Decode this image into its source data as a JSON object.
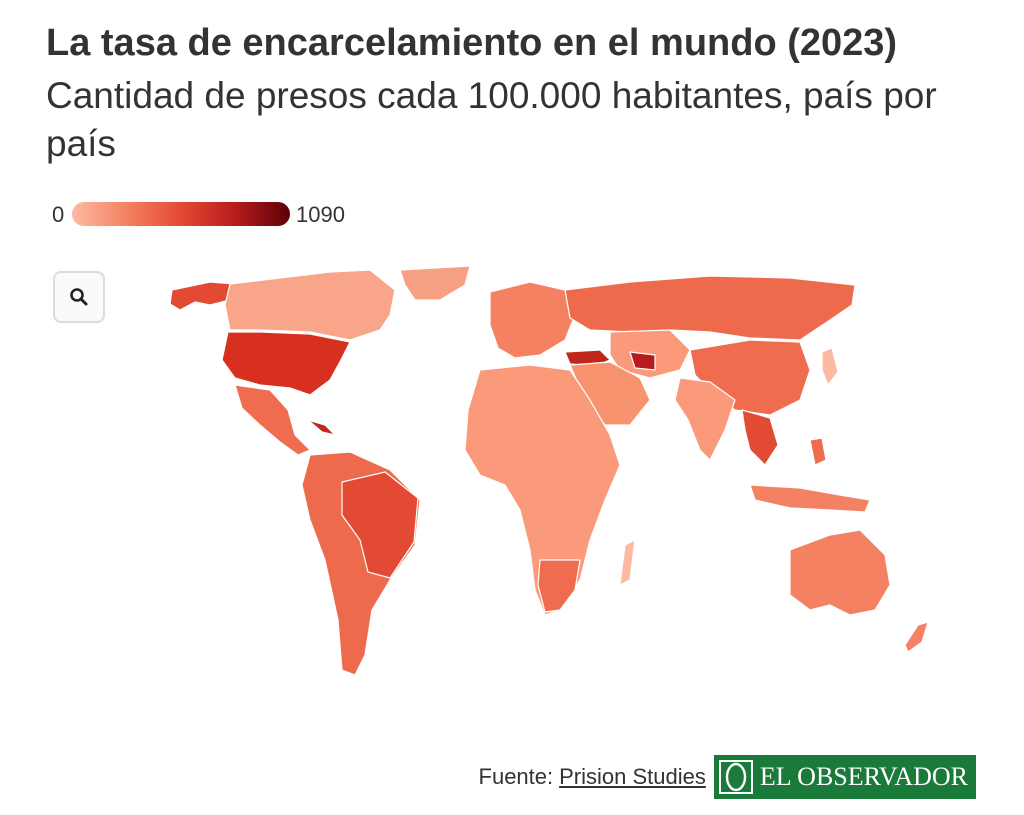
{
  "header": {
    "title": "La tasa de encarcelamiento en el mundo (2023)",
    "subtitle": "Cantidad de presos cada 100.000 habitantes, país por país"
  },
  "legend": {
    "min": "0",
    "max": "1090",
    "colors": [
      "#fcbba1",
      "#f58163",
      "#e34a33",
      "#b71c1c",
      "#5c0006"
    ]
  },
  "map": {
    "type": "choropleth",
    "no_data_color": "#e6e6e6",
    "zoom_button_icon": "search-icon"
  },
  "footer": {
    "source_prefix": "Fuente:",
    "source_link": "Prision Studies",
    "logo_text": "EL OBSERVADOR",
    "logo_color": "#1a7a3a"
  }
}
